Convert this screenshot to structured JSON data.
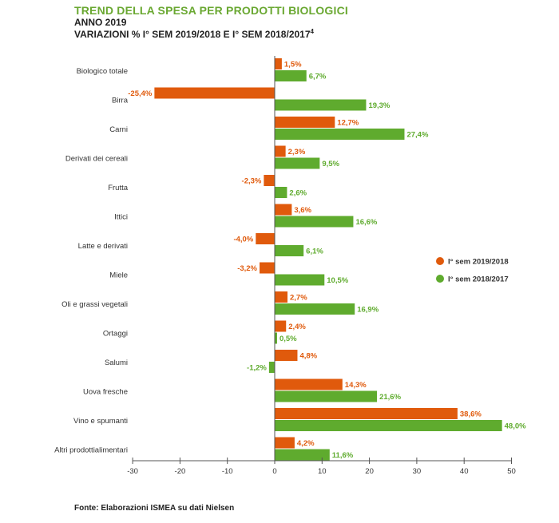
{
  "titles": {
    "main": "TREND DELLA SPESA PER PRODOTTI BIOLOGICI",
    "year": "ANNO 2019",
    "sub": "VARIAZIONI % I° SEM 2019/2018 E I° SEM 2018/2017",
    "sub_sup": "4"
  },
  "source": "Fonte: Elaborazioni ISMEA su dati Nielsen",
  "colors": {
    "s1": "#e05a0c",
    "s2": "#5fab2e",
    "axis": "#555555"
  },
  "chart_data": {
    "type": "bar",
    "orientation": "horizontal",
    "categories": [
      "Biologico totale",
      "Birra",
      "Carni",
      "Derivati dei cereali",
      "Frutta",
      "Ittici",
      "Latte e derivati",
      "Miele",
      "Oli e grassi vegetali",
      "Ortaggi",
      "Salumi",
      "Uova fresche",
      "Vino e spumanti",
      "Altri prodottialimentari"
    ],
    "series": [
      {
        "name": "I° sem 2019/2018",
        "values": [
          1.5,
          -25.4,
          12.7,
          2.3,
          -2.3,
          3.6,
          -4.0,
          -3.2,
          2.7,
          2.4,
          4.8,
          14.3,
          38.6,
          4.2
        ],
        "labels": [
          "1,5%",
          "-25,4%",
          "12,7%",
          "2,3%",
          "-2,3%",
          "3,6%",
          "-4,0%",
          "-3,2%",
          "2,7%",
          "2,4%",
          "4,8%",
          "14,3%",
          "38,6%",
          "4,2%"
        ]
      },
      {
        "name": "I° sem 2018/2017",
        "values": [
          6.7,
          19.3,
          27.4,
          9.5,
          2.6,
          16.6,
          6.1,
          10.5,
          16.9,
          0.5,
          -1.2,
          21.6,
          48.0,
          11.6
        ],
        "labels": [
          "6,7%",
          "19,3%",
          "27,4%",
          "9,5%",
          "2,6%",
          "16,6%",
          "6,1%",
          "10,5%",
          "16,9%",
          "0,5%",
          "-1,2%",
          "21,6%",
          "48,0%",
          "11,6%"
        ]
      }
    ],
    "xlim": [
      -30,
      50
    ],
    "xticks": [
      -30,
      -20,
      -10,
      0,
      10,
      20,
      30,
      40,
      50
    ],
    "xtick_labels": [
      "-30",
      "-20",
      "-10",
      "0",
      "10",
      "20",
      "30",
      "40",
      "50"
    ],
    "legend_position": "right",
    "grid": false
  }
}
